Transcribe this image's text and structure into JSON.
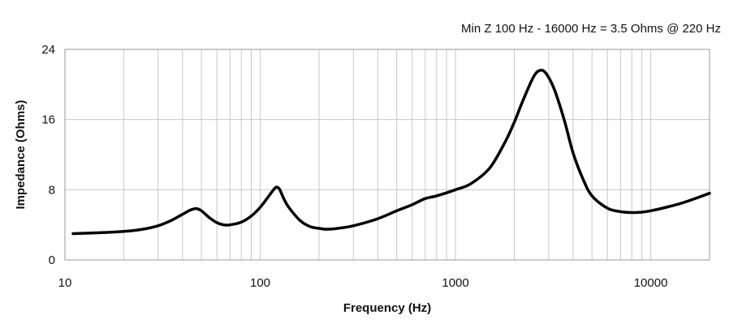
{
  "chart_data": {
    "type": "line",
    "title": "",
    "annotation": "Min Z  100 Hz - 16000 Hz = 3.5 Ohms @ 220 Hz",
    "xlabel": "Frequency (Hz)",
    "ylabel": "Impedance (Ohms)",
    "xscale": "log",
    "xlim": [
      10,
      20000
    ],
    "ylim": [
      0,
      24
    ],
    "xticks": [
      10,
      100,
      1000,
      10000
    ],
    "xtick_labels": [
      "10",
      "100",
      "1000",
      "10000"
    ],
    "yticks": [
      0,
      8,
      16,
      24
    ],
    "ytick_labels": [
      "0",
      "8",
      "16",
      "24"
    ],
    "grid": true,
    "legend": "none",
    "line_color": "#000000",
    "series": [
      {
        "x": [
          11,
          15,
          20,
          25,
          30,
          35,
          40,
          44,
          47,
          50,
          55,
          60,
          65,
          70,
          80,
          90,
          100,
          110,
          118,
          122,
          126,
          132,
          140,
          160,
          180,
          200,
          220,
          250,
          300,
          400,
          500,
          600,
          700,
          800,
          1000,
          1200,
          1500,
          1800,
          2000,
          2200,
          2500,
          2700,
          2900,
          3200,
          3600,
          4000,
          4500,
          5000,
          6000,
          7000,
          8000,
          9000,
          10000,
          12000,
          15000,
          20000
        ],
        "y": [
          3.0,
          3.1,
          3.25,
          3.5,
          3.9,
          4.5,
          5.2,
          5.7,
          5.85,
          5.6,
          4.8,
          4.25,
          4.0,
          4.0,
          4.3,
          5.0,
          6.0,
          7.2,
          8.1,
          8.3,
          8.0,
          7.0,
          6.0,
          4.5,
          3.8,
          3.6,
          3.5,
          3.6,
          3.9,
          4.7,
          5.6,
          6.3,
          7.0,
          7.3,
          8.0,
          8.7,
          10.5,
          13.5,
          15.7,
          18.0,
          20.8,
          21.6,
          21.3,
          19.5,
          16.0,
          12.2,
          9.2,
          7.3,
          5.9,
          5.5,
          5.4,
          5.45,
          5.6,
          6.0,
          6.6,
          7.6
        ]
      }
    ]
  }
}
